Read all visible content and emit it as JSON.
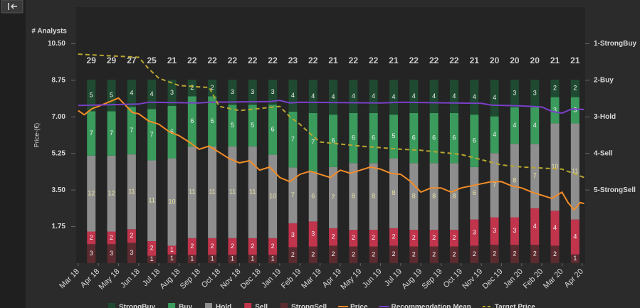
{
  "chart_data": {
    "type": "analyst-combo",
    "count_label": "# Analysts",
    "y_label": "Price-(€)",
    "ylim": [
      0,
      12.25
    ],
    "yticks": [
      1.75,
      {
        "value": 3.5,
        "label": "3.50"
      },
      5.25,
      {
        "value": 7,
        "label": "7.00"
      },
      8.75,
      {
        "value": 10.5,
        "label": "10.50"
      }
    ],
    "y2lim": [
      7,
      0
    ],
    "y2ticks": [
      {
        "value": 1,
        "label": "1-StrongBuy"
      },
      {
        "value": 2,
        "label": "2-Buy"
      },
      {
        "value": 3,
        "label": "3-Hold"
      },
      {
        "value": 4,
        "label": "4-Sell"
      },
      {
        "value": 5,
        "label": "5-StrongSell"
      }
    ],
    "xlim": [
      -0.1,
      25.15
    ],
    "xticks": [
      "Mar 18",
      "Apr 18",
      "May 18",
      "Jun 18",
      "Jul 18",
      "Aug 18",
      "Sep 18",
      "Oct 18",
      "Nov 18",
      "Dec 18",
      "Jan 19",
      "Feb 19",
      "Mar 19",
      "Apr 19",
      "May 19",
      "Jun 19",
      "Jul 19",
      "Aug 19",
      "Sep 19",
      "Oct 19",
      "Nov 19",
      "Dec 19",
      "Jan 20",
      "Feb 20",
      "Mar 20",
      "Apr 20"
    ],
    "totals": [
      29,
      29,
      27,
      25,
      21,
      22,
      22,
      22,
      22,
      22,
      23,
      22,
      21,
      22,
      22,
      21,
      22,
      22,
      22,
      21,
      20,
      20,
      20,
      21,
      21
    ],
    "bars": [
      {
        "name": "StrongSell",
        "color": "#5b2b30",
        "values": [
          3,
          3,
          3,
          1,
          1,
          1,
          1,
          1,
          1,
          1,
          2,
          2,
          2,
          2,
          2,
          2,
          2,
          2,
          2,
          2,
          2,
          2,
          2,
          2,
          1
        ]
      },
      {
        "name": "Sell",
        "color": "#c0344c",
        "values": [
          2,
          2,
          2,
          2,
          1,
          2,
          2,
          2,
          2,
          2,
          3,
          3,
          2,
          2,
          2,
          2,
          2,
          2,
          2,
          3,
          3,
          3,
          4,
          4,
          4
        ]
      },
      {
        "name": "Hold",
        "color": "#8e8e8e",
        "values": [
          12,
          12,
          11,
          11,
          10,
          11,
          11,
          11,
          11,
          10,
          7,
          6,
          7,
          8,
          8,
          8,
          8,
          8,
          8,
          6,
          7,
          8,
          7,
          10,
          11
        ]
      },
      {
        "name": "Buy",
        "color": "#3a9b5c",
        "values": [
          7,
          7,
          7,
          7,
          6,
          6,
          6,
          5,
          5,
          6,
          7,
          7,
          6,
          6,
          6,
          5,
          6,
          6,
          6,
          6,
          4,
          4,
          4,
          3,
          3
        ]
      },
      {
        "name": "StrongBuy",
        "color": "#1f4a31",
        "values": [
          5,
          5,
          4,
          4,
          3,
          2,
          2,
          3,
          3,
          3,
          4,
          4,
          4,
          4,
          4,
          4,
          4,
          4,
          4,
          4,
          4,
          3,
          3,
          2,
          2
        ]
      }
    ],
    "lines": [
      {
        "name": "Price",
        "color": "#f28c28",
        "dashed": false,
        "x": [
          0,
          0.3,
          0.7,
          1,
          1.5,
          2,
          2.3,
          2.7,
          3,
          3.5,
          4,
          4.5,
          5,
          5.5,
          6,
          6.5,
          7,
          7.5,
          8,
          8.5,
          9,
          9.5,
          10,
          10.5,
          11,
          11.5,
          12,
          12.5,
          13,
          13.5,
          14,
          14.5,
          15,
          15.5,
          16,
          16.5,
          17,
          17.5,
          18,
          18.5,
          19,
          19.5,
          20,
          20.5,
          21,
          21.5,
          22,
          22.5,
          23,
          23.5,
          24,
          24.3,
          24.6,
          24.9,
          25.1
        ],
        "values": [
          7.3,
          7.1,
          7.4,
          7.5,
          7.7,
          7.9,
          7.6,
          7.2,
          7.15,
          6.8,
          6.65,
          6.3,
          6.1,
          5.8,
          5.45,
          5.6,
          5.3,
          5.0,
          4.8,
          4.9,
          4.45,
          4.6,
          4.1,
          3.9,
          4.25,
          4.4,
          4.25,
          4.1,
          4.45,
          4.3,
          4.45,
          4.6,
          4.5,
          4.3,
          4.25,
          3.9,
          3.4,
          3.6,
          3.6,
          3.4,
          3.6,
          3.7,
          3.8,
          3.9,
          3.9,
          3.7,
          3.6,
          3.4,
          3.25,
          3.1,
          3.4,
          2.9,
          2.55,
          2.9,
          2.85
        ]
      },
      {
        "name": "Recommendation Mean",
        "color": "#7a40c8",
        "dashed": false,
        "axis": "y2",
        "x": [
          0,
          3,
          3.5,
          6,
          6.5,
          9.5,
          10,
          10.5,
          11,
          15,
          16,
          20,
          20.5,
          22,
          23,
          23.5,
          24,
          24.5,
          25.1
        ],
        "values": [
          2.69,
          2.65,
          2.6,
          2.62,
          2.6,
          2.58,
          2.55,
          2.62,
          2.6,
          2.62,
          2.6,
          2.63,
          2.68,
          2.7,
          2.73,
          2.85,
          2.9,
          2.78,
          2.8
        ]
      },
      {
        "name": "Target Price",
        "color": "#b9a630",
        "dashed": true,
        "x": [
          0,
          1,
          2,
          3,
          3.5,
          4,
          5,
          6.5,
          7,
          8,
          10,
          10.5,
          11,
          11.5,
          12,
          14,
          16,
          17,
          18,
          19,
          20,
          21,
          22,
          23,
          24,
          25.1
        ],
        "values": [
          10.0,
          9.95,
          9.9,
          9.85,
          9.3,
          8.85,
          8.5,
          8.4,
          7.5,
          7.3,
          7.5,
          7.0,
          6.65,
          6.2,
          5.8,
          5.6,
          5.45,
          5.4,
          5.3,
          5.2,
          4.95,
          4.7,
          4.6,
          4.55,
          4.5,
          4.1
        ]
      }
    ]
  }
}
